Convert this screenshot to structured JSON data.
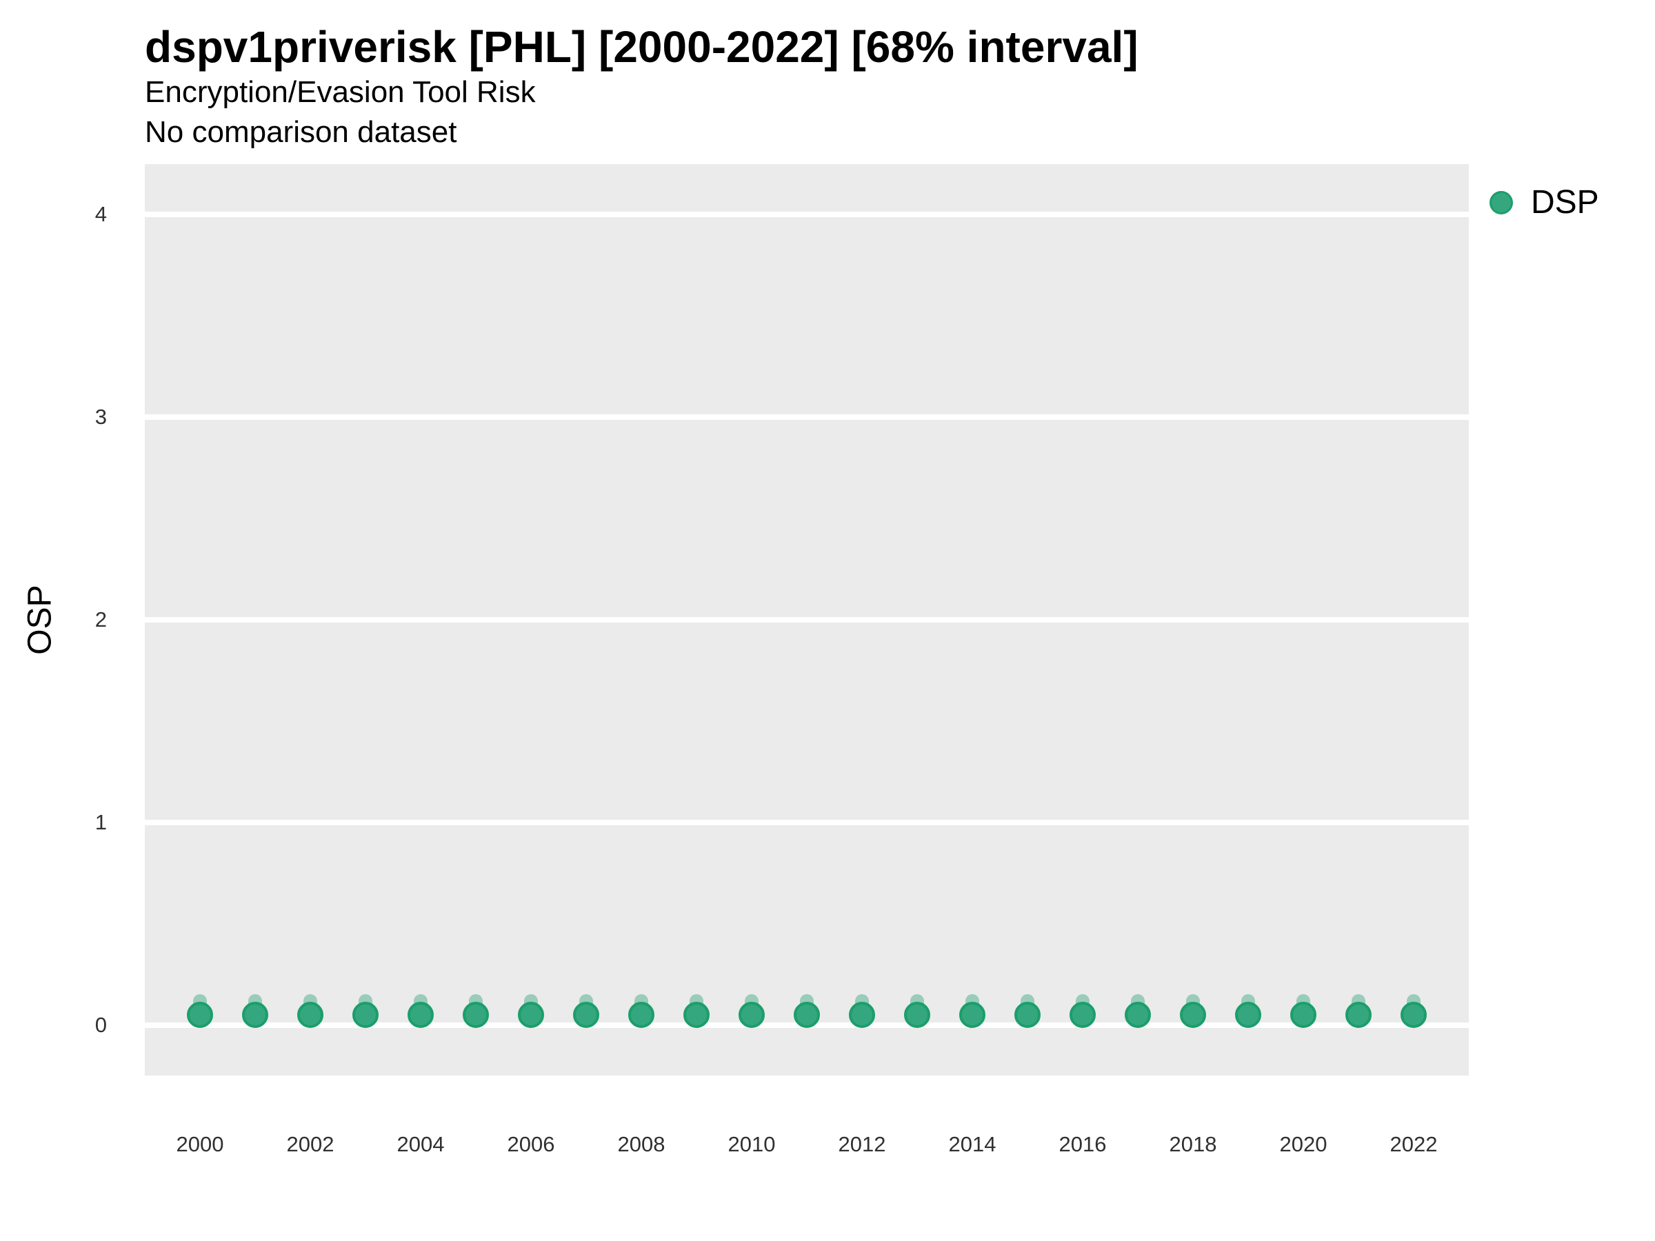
{
  "chart_data": {
    "type": "scatter",
    "title": "dspv1priverisk [PHL] [2000-2022] [68% interval]",
    "subtitle": "Encryption/Evasion Tool Risk",
    "note": "No comparison dataset",
    "xlabel": "",
    "ylabel": "OSP",
    "xlim": [
      1999,
      2023
    ],
    "ylim": [
      -0.25,
      4.25
    ],
    "yticks": [
      0,
      1,
      2,
      3,
      4
    ],
    "xticks": [
      2000,
      2002,
      2004,
      2006,
      2008,
      2010,
      2012,
      2014,
      2016,
      2018,
      2020,
      2022
    ],
    "grid": "major-horizontal-only",
    "legend_position": "right",
    "interval_label": "68% interval",
    "panel_background": "#EBEBEB",
    "gridline_color": "#FFFFFF",
    "series": [
      {
        "name": "DSP",
        "color": "#35A77E",
        "edge_color": "#1C9E6C",
        "interval_color": "rgba(53,167,126,0.45)",
        "x": [
          2000,
          2001,
          2002,
          2003,
          2004,
          2005,
          2006,
          2007,
          2008,
          2009,
          2010,
          2011,
          2012,
          2013,
          2014,
          2015,
          2016,
          2017,
          2018,
          2019,
          2020,
          2021,
          2022
        ],
        "y": [
          0.05,
          0.05,
          0.05,
          0.05,
          0.05,
          0.05,
          0.05,
          0.05,
          0.05,
          0.05,
          0.05,
          0.05,
          0.05,
          0.05,
          0.05,
          0.05,
          0.05,
          0.05,
          0.05,
          0.05,
          0.05,
          0.05,
          0.05
        ],
        "y_low": [
          0.0,
          0.0,
          0.0,
          0.0,
          0.0,
          0.0,
          0.0,
          0.0,
          0.0,
          0.0,
          0.0,
          0.0,
          0.0,
          0.0,
          0.0,
          0.0,
          0.0,
          0.0,
          0.0,
          0.0,
          0.0,
          0.0,
          0.0
        ],
        "y_high": [
          0.15,
          0.15,
          0.15,
          0.15,
          0.15,
          0.15,
          0.15,
          0.15,
          0.15,
          0.15,
          0.15,
          0.15,
          0.15,
          0.15,
          0.15,
          0.15,
          0.15,
          0.15,
          0.15,
          0.15,
          0.15,
          0.15,
          0.15
        ]
      }
    ]
  }
}
